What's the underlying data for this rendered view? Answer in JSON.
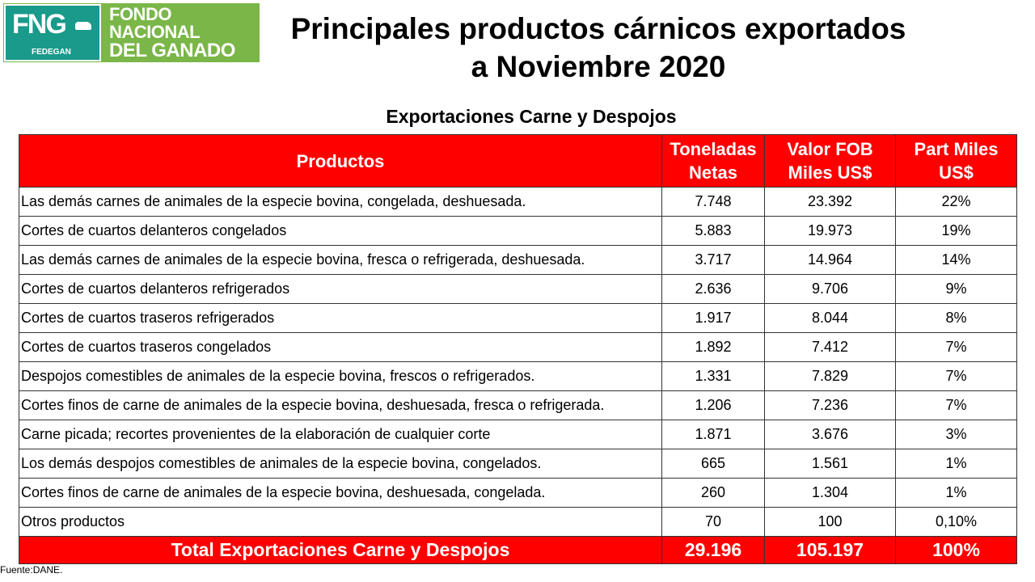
{
  "logo": {
    "mark": "FNG",
    "sub": "FEDEGAN",
    "line1": "FONDO NACIONAL",
    "line2": "DEL GANADO",
    "colors": {
      "teal": "#1a9a8a",
      "green": "#7ab648"
    }
  },
  "title_line1": "Principales productos cárnicos exportados",
  "title_line2": "a Noviembre 2020",
  "subtitle": "Exportaciones Carne y Despojos",
  "table": {
    "headers": {
      "product": "Productos",
      "tons_line1": "Toneladas",
      "tons_line2": "Netas",
      "fob_line1": "Valor FOB",
      "fob_line2": "Miles US$",
      "part_line1": "Part Miles",
      "part_line2": "US$"
    },
    "rows": [
      {
        "product": "Las demás carnes de animales de la especie bovina, congelada, deshuesada.",
        "tons": "7.748",
        "fob": "23.392",
        "part": "22%"
      },
      {
        "product": "Cortes de cuartos delanteros congelados",
        "tons": "5.883",
        "fob": "19.973",
        "part": "19%"
      },
      {
        "product": "Las demás carnes de animales de la especie bovina, fresca o refrigerada, deshuesada.",
        "tons": "3.717",
        "fob": "14.964",
        "part": "14%"
      },
      {
        "product": "Cortes de cuartos delanteros refrigerados",
        "tons": "2.636",
        "fob": "9.706",
        "part": "9%"
      },
      {
        "product": "Cortes de cuartos traseros refrigerados",
        "tons": "1.917",
        "fob": "8.044",
        "part": "8%"
      },
      {
        "product": "Cortes de cuartos traseros congelados",
        "tons": "1.892",
        "fob": "7.412",
        "part": "7%"
      },
      {
        "product": "Despojos comestibles de animales de la especie bovina, frescos o refrigerados.",
        "tons": "1.331",
        "fob": "7.829",
        "part": "7%"
      },
      {
        "product": "Cortes finos de carne de animales de la especie bovina, deshuesada, fresca o refrigerada.",
        "tons": "1.206",
        "fob": "7.236",
        "part": "7%"
      },
      {
        "product": "Carne picada; recortes provenientes de la elaboración de cualquier corte",
        "tons": "1.871",
        "fob": "3.676",
        "part": "3%"
      },
      {
        "product": "Los demás despojos comestibles de animales de la especie bovina, congelados.",
        "tons": "665",
        "fob": "1.561",
        "part": "1%"
      },
      {
        "product": "Cortes finos de carne de animales de la especie bovina, deshuesada, congelada.",
        "tons": "260",
        "fob": "1.304",
        "part": "1%"
      },
      {
        "product": "Otros productos",
        "tons": "70",
        "fob": "100",
        "part": "0,10%"
      }
    ],
    "total": {
      "label": "Total Exportaciones Carne y Despojos",
      "tons": "29.196",
      "fob": "105.197",
      "part": "100%"
    },
    "header_color": "#ff0000"
  },
  "source": "Fuente:DANE."
}
